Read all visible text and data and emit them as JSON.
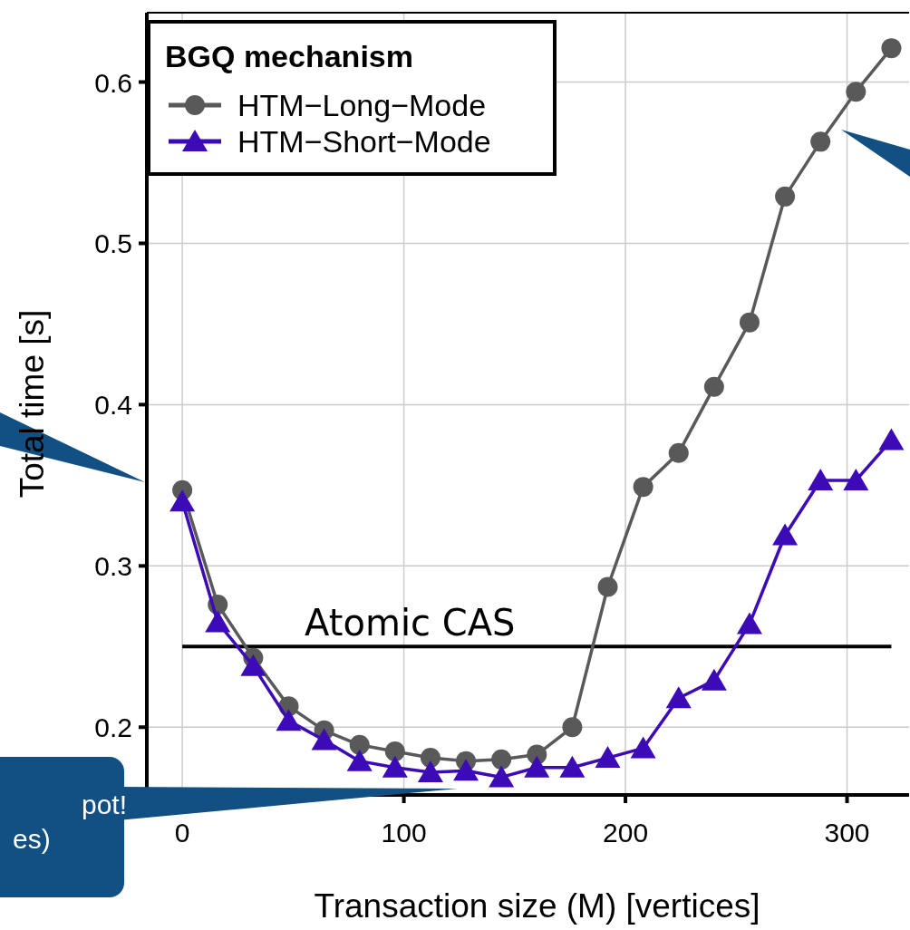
{
  "chart_data": {
    "type": "line",
    "xlabel": "Transaction size (M) [vertices]",
    "ylabel": "Total time [s]",
    "legend_title": "BGQ mechanism",
    "legend": "top left",
    "grid": true,
    "x": [
      0,
      16,
      32,
      48,
      64,
      80,
      96,
      112,
      128,
      144,
      160,
      176,
      192,
      208,
      224,
      240,
      256,
      272,
      288,
      304,
      320
    ],
    "series": [
      {
        "name": "HTM−Long−Mode",
        "color": "#595959",
        "marker": "circle",
        "values": [
          0.347,
          0.276,
          0.243,
          0.213,
          0.198,
          0.189,
          0.185,
          0.181,
          0.179,
          0.18,
          0.183,
          0.2,
          0.287,
          0.349,
          0.37,
          0.411,
          0.451,
          0.529,
          0.563,
          0.594,
          0.621
        ]
      },
      {
        "name": "HTM−Short−Mode",
        "color": "#3d0ab8",
        "marker": "triangle",
        "values": [
          0.34,
          0.265,
          0.238,
          0.204,
          0.192,
          0.179,
          0.175,
          0.172,
          0.173,
          0.169,
          0.175,
          0.175,
          0.181,
          0.187,
          0.218,
          0.229,
          0.264,
          0.319,
          0.353,
          0.353,
          0.378
        ]
      }
    ],
    "xlim": [
      -16,
      328
    ],
    "xticks": [
      0,
      100,
      200,
      300
    ],
    "ylim": [
      0.158,
      0.643
    ],
    "yticks": [
      0.2,
      0.3,
      0.4,
      0.5,
      0.6
    ],
    "ref_lines": [
      {
        "axis": "y",
        "value": 0.25,
        "label": "Atomic CAS",
        "color": "#000000"
      }
    ],
    "annotations": [
      "pot!\nes)"
    ]
  }
}
